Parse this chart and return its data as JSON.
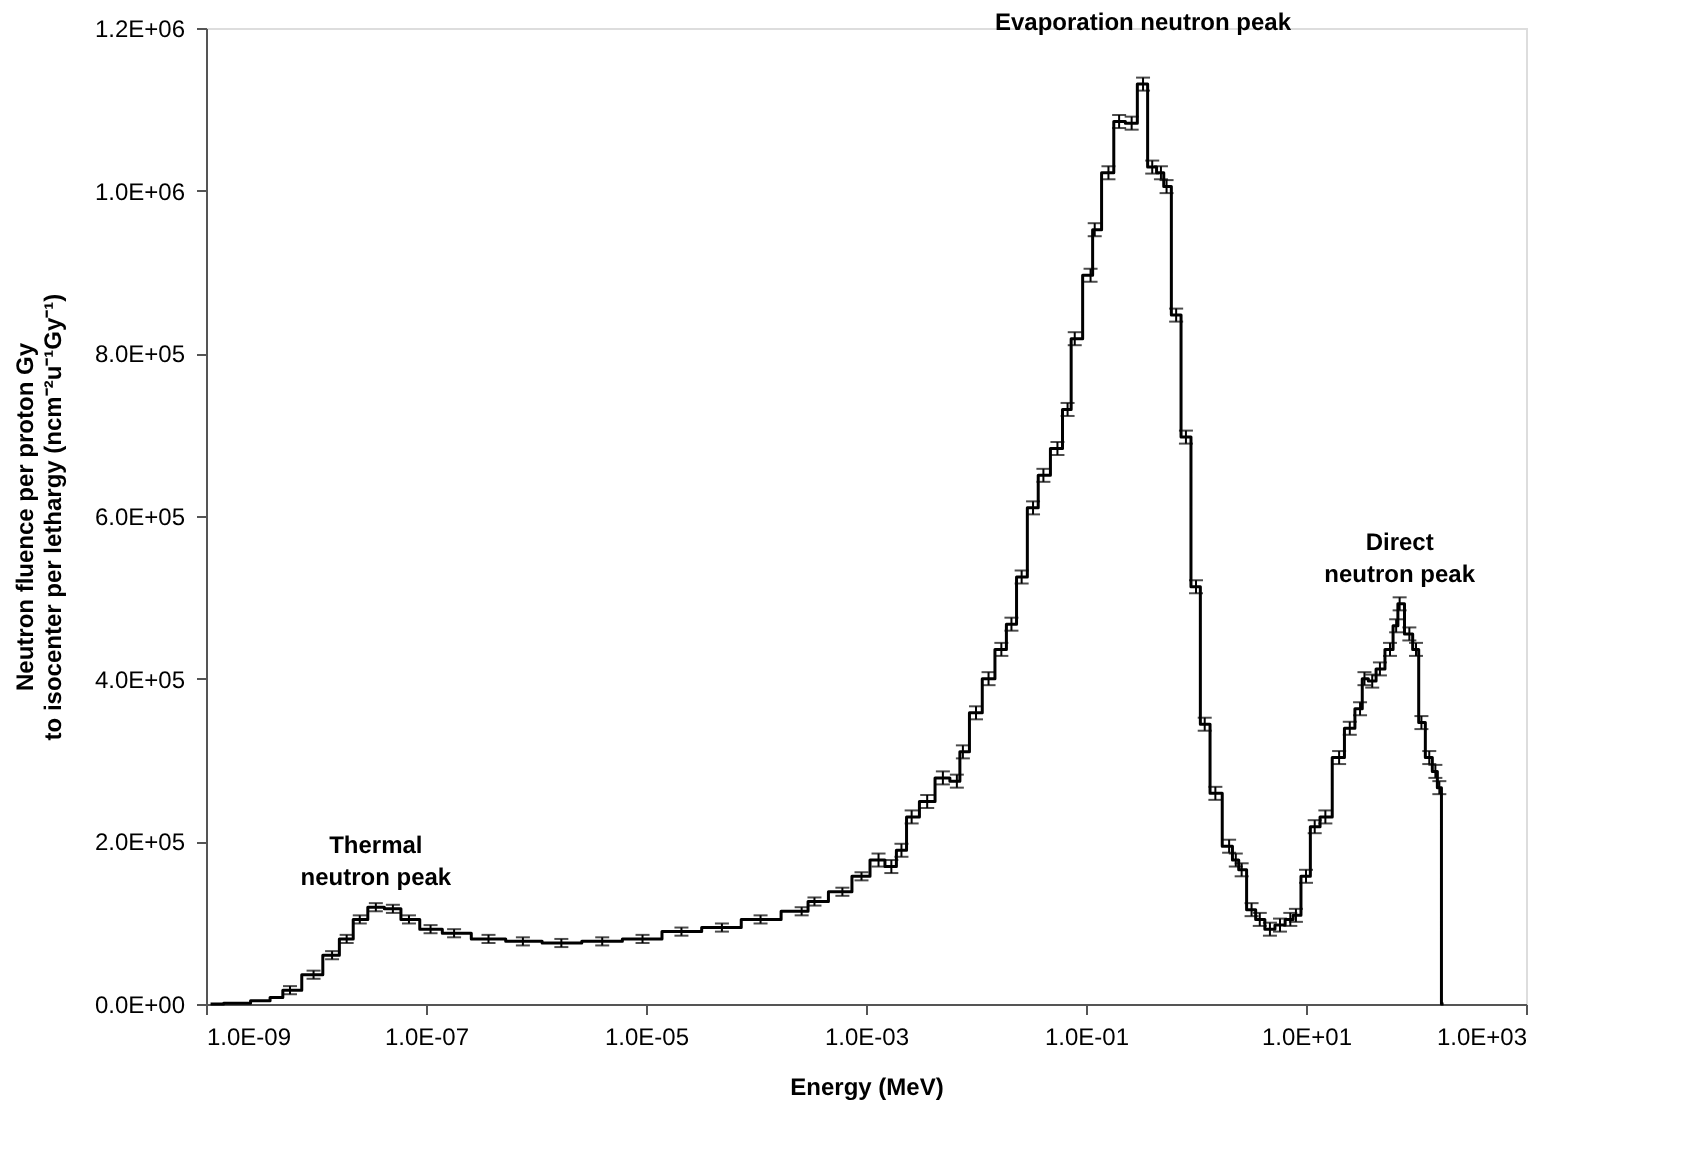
{
  "chart_data": {
    "type": "step",
    "xlabel": "Energy (MeV)",
    "ylabel": "Neutron fluence per proton Gy\nto isocenter per lethargy (ncm⁻²u⁻¹Gy⁻¹)",
    "log": "x",
    "grid": false,
    "marker": "none",
    "line_style": "solid",
    "xlim": [
      1e-09,
      1000
    ],
    "ylim": [
      0,
      1200000
    ],
    "xticks": [
      {
        "value": 1e-09,
        "label": "1.0E-09"
      },
      {
        "value": 1e-07,
        "label": "1.0E-07"
      },
      {
        "value": 1e-05,
        "label": "1.0E-05"
      },
      {
        "value": 0.001,
        "label": "1.0E-03"
      },
      {
        "value": 0.1,
        "label": "1.0E-01"
      },
      {
        "value": 10,
        "label": "1.0E+01"
      },
      {
        "value": 1000,
        "label": "1.0E+03"
      }
    ],
    "yticks": [
      {
        "value": 0,
        "label": "0.0E+00"
      },
      {
        "value": 200000,
        "label": "2.0E+05"
      },
      {
        "value": 400000,
        "label": "4.0E+05"
      },
      {
        "value": 600000,
        "label": "6.0E+05"
      },
      {
        "value": 800000,
        "label": "8.0E+05"
      },
      {
        "value": 1000000,
        "label": "1.0E+06"
      },
      {
        "value": 1200000,
        "label": "1.2E+06"
      }
    ],
    "annotations": [
      {
        "text": "Thermal\nneutron peak",
        "x": 3.5e-08,
        "y": 119000
      },
      {
        "text": "Evaporation neutron peak",
        "x": 0.33,
        "y": 1131000
      },
      {
        "text": "Direct\nneutron peak",
        "x": 71,
        "y": 492000
      }
    ],
    "series": [
      {
        "color": "#000000",
        "x": [
          1.1e-09,
          1.9e-09,
          3.4e-09,
          4.3e-09,
          5.8e-09,
          9.5e-09,
          1.4e-08,
          1.9e-08,
          2.5e-08,
          3.5e-08,
          5e-08,
          7e-08,
          1.1e-07,
          1.8e-07,
          3.7e-07,
          7.6e-07,
          1.7e-06,
          4e-06,
          9.3e-06,
          2.1e-05,
          4.9e-05,
          0.00011,
          0.00026,
          0.00034,
          0.00061,
          0.00091,
          0.0013,
          0.0017,
          0.0021,
          0.0026,
          0.0036,
          0.005,
          0.0067,
          0.0076,
          0.01,
          0.013,
          0.017,
          0.021,
          0.026,
          0.033,
          0.041,
          0.055,
          0.068,
          0.079,
          0.11,
          0.12,
          0.16,
          0.2,
          0.26,
          0.33,
          0.4,
          0.48,
          0.54,
          0.66,
          0.81,
          1.0,
          1.2,
          1.5,
          2.0,
          2.3,
          2.6,
          3.2,
          3.8,
          4.7,
          5.8,
          7.2,
          8.1,
          10,
          12,
          15,
          20,
          25,
          31,
          34,
          40,
          47,
          58,
          66,
          71,
          87,
          100,
          112,
          132,
          150,
          163,
          178
        ],
        "values": [
          0,
          1000,
          4000,
          8000,
          17000,
          36000,
          60000,
          80000,
          104000,
          119000,
          117000,
          104000,
          92000,
          87000,
          80000,
          77000,
          75000,
          77000,
          80000,
          89000,
          94000,
          104000,
          114000,
          126000,
          138000,
          157000,
          177000,
          169000,
          189000,
          230000,
          249000,
          278000,
          274000,
          310000,
          358000,
          400000,
          436000,
          467000,
          525000,
          610000,
          650000,
          683000,
          731000,
          818000,
          896000,
          952000,
          1022000,
          1085000,
          1083000,
          1131000,
          1029000,
          1022000,
          1005000,
          847000,
          697000,
          513000,
          344000,
          259000,
          194000,
          177000,
          165000,
          116000,
          104000,
          92000,
          97000,
          104000,
          109000,
          157000,
          218000,
          230000,
          303000,
          339000,
          363000,
          400000,
          397000,
          412000,
          436000,
          465000,
          492000,
          455000,
          436000,
          346000,
          303000,
          286000,
          266000,
          0
        ],
        "errors": [
          null,
          null,
          null,
          null,
          5000,
          5000,
          5000,
          5000,
          5000,
          5000,
          5000,
          5000,
          5000,
          5000,
          5000,
          5000,
          5000,
          5000,
          5000,
          5000,
          5000,
          5000,
          5000,
          5000,
          5000,
          5000,
          8000,
          8000,
          8000,
          8000,
          8000,
          8000,
          8000,
          8000,
          8000,
          8000,
          8000,
          8000,
          8000,
          8000,
          8000,
          8000,
          8000,
          8000,
          8000,
          8000,
          8000,
          8000,
          8000,
          8000,
          8000,
          8000,
          8000,
          8000,
          8000,
          8000,
          8000,
          8000,
          8000,
          8000,
          8000,
          8000,
          8000,
          8000,
          8000,
          8000,
          8000,
          8000,
          8000,
          8000,
          8000,
          8000,
          8000,
          8000,
          8000,
          8000,
          8000,
          8000,
          8000,
          8000,
          8000,
          8000,
          8000,
          8000,
          8000,
          null
        ]
      }
    ]
  }
}
